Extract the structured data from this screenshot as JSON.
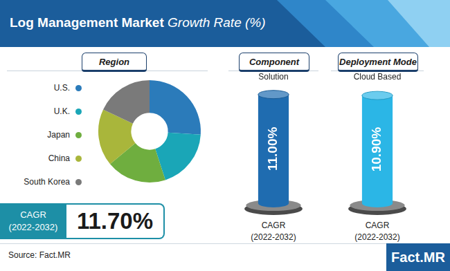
{
  "header": {
    "title": "Log Management Market",
    "subtitle": "Growth Rate (%)"
  },
  "chart_data": [
    {
      "type": "doughnut",
      "title": "Region",
      "categories": [
        "U.S.",
        "U.K.",
        "Japan",
        "China",
        "South Korea"
      ],
      "values": [
        26,
        19,
        19,
        18,
        18
      ],
      "colors": [
        "#2b7bba",
        "#1aa6b7",
        "#6fae3f",
        "#a9b63b",
        "#7a7a7a"
      ],
      "legend": "left"
    },
    {
      "type": "bar",
      "title": "Component",
      "categories": [
        "Solution"
      ],
      "values": [
        11.0
      ],
      "value_labels": [
        "11.00%"
      ],
      "color": "#1f6cb0",
      "data_labels": true,
      "ylim": [
        0,
        12
      ],
      "tick_labels": "x",
      "grid": false,
      "annotations": [
        "CAGR",
        "(2022-2032)"
      ]
    },
    {
      "type": "bar",
      "title": "Deployment Mode",
      "categories": [
        "Cloud Based"
      ],
      "values": [
        10.9
      ],
      "value_labels": [
        "10.90%"
      ],
      "color": "#2bb6e6",
      "data_labels": true,
      "ylim": [
        0,
        12
      ],
      "tick_labels": "x",
      "grid": false,
      "annotations": [
        "CAGR",
        "(2022-2032)"
      ]
    }
  ],
  "cagr": {
    "label": "CAGR",
    "period": "(2022-2032)",
    "value_label": "11.70%"
  },
  "source": "Source: Fact.MR",
  "logo": "Fact.MR"
}
